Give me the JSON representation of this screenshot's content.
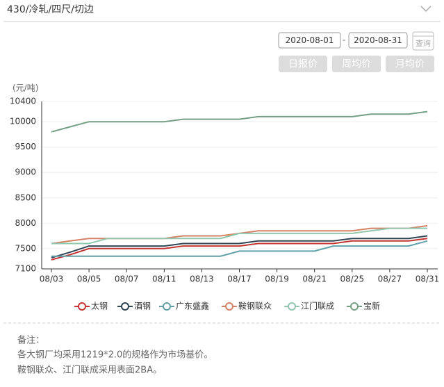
{
  "header": {
    "title": "430/冷轧/四尺/切边"
  },
  "controls": {
    "start_date": "2020-08-01",
    "separator": "-",
    "end_date": "2020-08-31",
    "query": "查询",
    "buttons": [
      "日报价",
      "周均价",
      "月均价"
    ]
  },
  "chart_data": {
    "type": "line",
    "y_label": "(元/吨)",
    "categories": [
      "08/03",
      null,
      "08/05",
      null,
      "08/07",
      null,
      "08/11",
      null,
      "08/13",
      null,
      "08/17",
      null,
      "08/19",
      null,
      "08/21",
      null,
      "08/25",
      null,
      "08/27",
      null,
      "08/31"
    ],
    "ylim": [
      7100,
      10400
    ],
    "yticks": [
      7100,
      7500,
      8000,
      8500,
      9000,
      9500,
      10000,
      10400
    ],
    "grid": true,
    "series": [
      {
        "name": "太钢",
        "color": "#c23531",
        "values": [
          7280,
          7380,
          7500,
          7500,
          7500,
          7500,
          7500,
          7550,
          7550,
          7550,
          7550,
          7600,
          7600,
          7600,
          7600,
          7600,
          7650,
          7650,
          7650,
          7650,
          7700
        ]
      },
      {
        "name": "酒钢",
        "color": "#2f4554",
        "values": [
          7320,
          7430,
          7550,
          7550,
          7550,
          7550,
          7550,
          7600,
          7600,
          7600,
          7600,
          7650,
          7650,
          7650,
          7650,
          7650,
          7700,
          7700,
          7700,
          7700,
          7750
        ]
      },
      {
        "name": "广东盛鑫",
        "color": "#61a0a8",
        "values": [
          7350,
          7350,
          7350,
          7350,
          7350,
          7350,
          7350,
          7350,
          7350,
          7350,
          7450,
          7450,
          7450,
          7450,
          7450,
          7550,
          7550,
          7550,
          7550,
          7550,
          7650
        ]
      },
      {
        "name": "鞍钢联众",
        "color": "#d48265",
        "values": [
          7600,
          7650,
          7700,
          7700,
          7700,
          7700,
          7700,
          7750,
          7750,
          7750,
          7800,
          7850,
          7850,
          7850,
          7850,
          7850,
          7850,
          7900,
          7900,
          7900,
          7950
        ]
      },
      {
        "name": "江门联成",
        "color": "#91c7ae",
        "values": [
          7600,
          7600,
          7600,
          7700,
          7700,
          7700,
          7700,
          7700,
          7700,
          7700,
          7800,
          7800,
          7800,
          7800,
          7800,
          7800,
          7800,
          7850,
          7900,
          7900,
          7900
        ]
      },
      {
        "name": "宝新",
        "color": "#749f83",
        "values": [
          9800,
          9900,
          10000,
          10000,
          10000,
          10000,
          10000,
          10050,
          10050,
          10050,
          10050,
          10100,
          10100,
          10100,
          10100,
          10100,
          10100,
          10150,
          10150,
          10150,
          10200
        ]
      }
    ]
  },
  "notes": {
    "title": "备注：",
    "lines": [
      "各大钢厂均采用1219*2.0的规格作为市场基价。",
      "鞍钢联众、江门联成采用表面2BA。"
    ]
  }
}
